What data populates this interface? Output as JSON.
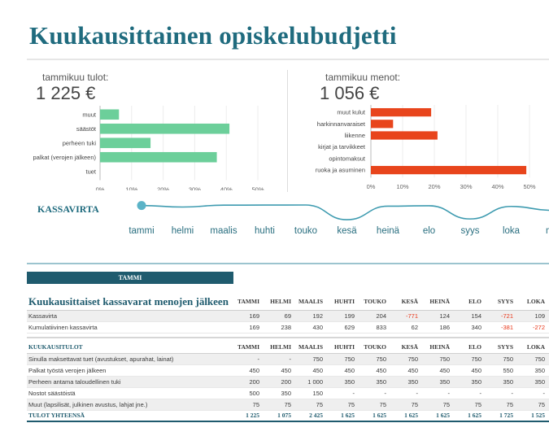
{
  "title": "Kuukausittainen opiskelubudjetti",
  "income": {
    "label": "tammikuu tulot:",
    "value": "1 225 €",
    "chart_data": {
      "type": "bar",
      "orientation": "horizontal",
      "categories": [
        "muut",
        "säästöt",
        "perheen tuki",
        "palkat (verojen jälkeen)",
        "tuet"
      ],
      "values": [
        6,
        41,
        16,
        37,
        0
      ],
      "xticks": [
        "0%",
        "10%",
        "20%",
        "30%",
        "40%",
        "50%"
      ],
      "xlim": [
        0,
        50
      ],
      "color": "#6ccf9a",
      "title": "",
      "xlabel": "",
      "ylabel": ""
    }
  },
  "expenses": {
    "label": "tammikuu menot:",
    "value": "1 056 €",
    "chart_data": {
      "type": "bar",
      "orientation": "horizontal",
      "categories": [
        "muut kulut",
        "harkinnanvaraiset",
        "liikenne",
        "kirjat ja tarvikkeet",
        "opintomaksut",
        "ruoka ja asuminen"
      ],
      "values": [
        19,
        7,
        21,
        0,
        0,
        49
      ],
      "xticks": [
        "0%",
        "10%",
        "20%",
        "30%",
        "40%",
        "50%"
      ],
      "xlim": [
        0,
        50
      ],
      "color": "#e8451c",
      "title": "",
      "xlabel": "",
      "ylabel": ""
    }
  },
  "cashflow": {
    "title": "KASSAVIRTA",
    "months": [
      "tammi",
      "helmi",
      "maalis",
      "huhti",
      "touko",
      "kesä",
      "heinä",
      "elo",
      "syys",
      "loka",
      "ma"
    ],
    "chart_data": {
      "type": "line",
      "x": [
        "tammi",
        "helmi",
        "maalis",
        "huhti",
        "touko",
        "kesä",
        "heinä",
        "elo",
        "syys",
        "loka",
        "marras"
      ],
      "values": [
        169,
        69,
        192,
        199,
        204,
        -771,
        124,
        154,
        -721,
        109,
        -150
      ],
      "color": "#3e9bb0",
      "marker_color": "#5bb3c7"
    }
  },
  "month_tab": "TAMMI",
  "months_upper": [
    "TAMMI",
    "HELMI",
    "MAALIS",
    "HUHTI",
    "TOUKO",
    "KESÄ",
    "HEINÄ",
    "ELO",
    "SYYS",
    "LOKA"
  ],
  "table1": {
    "title": "Kuukausittaiset kassavarat menojen jälkeen",
    "rows": [
      {
        "label": "Kassavirta",
        "values": [
          "169",
          "69",
          "192",
          "199",
          "204",
          "-771",
          "124",
          "154",
          "-721",
          "109"
        ]
      },
      {
        "label": "Kumulatiivinen kassavirta",
        "values": [
          "169",
          "238",
          "430",
          "629",
          "833",
          "62",
          "186",
          "340",
          "-381",
          "-272"
        ]
      }
    ]
  },
  "table2": {
    "title": "KUUKAUSITULOT",
    "rows": [
      {
        "label": "Sinulla maksettavat tuet (avustukset, apurahat, lainat)",
        "values": [
          "-",
          "-",
          "750",
          "750",
          "750",
          "750",
          "750",
          "750",
          "750",
          "750"
        ]
      },
      {
        "label": "Palkat työstä verojen jälkeen",
        "values": [
          "450",
          "450",
          "450",
          "450",
          "450",
          "450",
          "450",
          "450",
          "550",
          "350"
        ]
      },
      {
        "label": "Perheen antama taloudellinen tuki",
        "values": [
          "200",
          "200",
          "1 000",
          "350",
          "350",
          "350",
          "350",
          "350",
          "350",
          "350"
        ]
      },
      {
        "label": "Nostot säästöistä",
        "values": [
          "500",
          "350",
          "150",
          "-",
          "-",
          "-",
          "-",
          "-",
          "-",
          "-"
        ]
      },
      {
        "label": "Muut (lapsilisät, julkinen avustus, lahjat jne.)",
        "values": [
          "75",
          "75",
          "75",
          "75",
          "75",
          "75",
          "75",
          "75",
          "75",
          "75"
        ]
      }
    ],
    "total": {
      "label": "TULOT YHTEENSÄ",
      "values": [
        "1 225",
        "1 075",
        "2 425",
        "1 625",
        "1 625",
        "1 625",
        "1 625",
        "1 625",
        "1 725",
        "1 525"
      ]
    }
  }
}
